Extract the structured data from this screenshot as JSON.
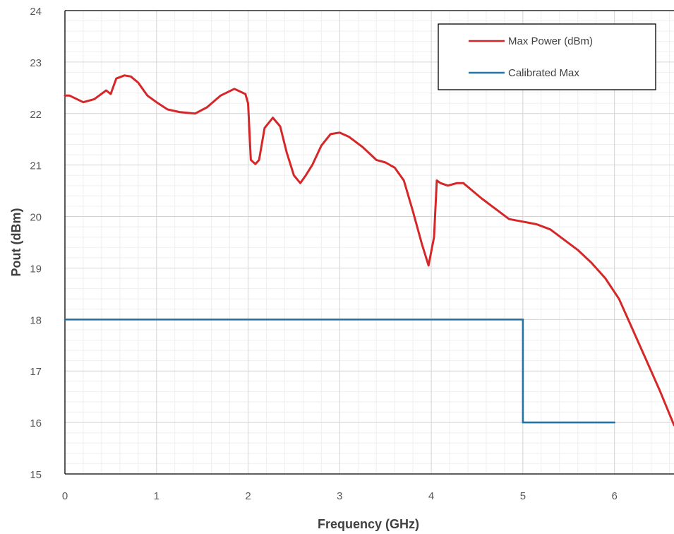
{
  "chart_data": {
    "type": "line",
    "title": "",
    "xlabel": "Frequency (GHz)",
    "ylabel": "Pout (dBm)",
    "xlim": [
      0,
      6.65
    ],
    "ylim": [
      15,
      24
    ],
    "xticks": [
      "0",
      "1",
      "2",
      "3",
      "4",
      "5",
      "6"
    ],
    "yticks": [
      "15",
      "16",
      "17",
      "18",
      "19",
      "20",
      "21",
      "22",
      "23",
      "24"
    ],
    "grid": true,
    "minor_grid": true,
    "legend_position": "top-right",
    "series": [
      {
        "name": "Max Power (dBm)",
        "color": "#d62728",
        "x": [
          0,
          0.05,
          0.2,
          0.32,
          0.45,
          0.5,
          0.56,
          0.65,
          0.72,
          0.8,
          0.9,
          1.0,
          1.12,
          1.25,
          1.42,
          1.55,
          1.7,
          1.85,
          1.97,
          2.0,
          2.03,
          2.08,
          2.12,
          2.18,
          2.27,
          2.35,
          2.42,
          2.5,
          2.57,
          2.63,
          2.7,
          2.8,
          2.9,
          3.0,
          3.1,
          3.25,
          3.4,
          3.5,
          3.6,
          3.7,
          3.8,
          3.9,
          3.97,
          4.03,
          4.06,
          4.1,
          4.18,
          4.28,
          4.35,
          4.45,
          4.55,
          4.7,
          4.85,
          5.0,
          5.15,
          5.3,
          5.45,
          5.6,
          5.75,
          5.9,
          6.05,
          6.2,
          6.35,
          6.5,
          6.65
        ],
        "values": [
          22.35,
          22.35,
          22.22,
          22.28,
          22.45,
          22.38,
          22.68,
          22.74,
          22.72,
          22.6,
          22.35,
          22.22,
          22.08,
          22.03,
          22.0,
          22.12,
          22.35,
          22.48,
          22.38,
          22.2,
          21.1,
          21.02,
          21.1,
          21.72,
          21.92,
          21.75,
          21.25,
          20.8,
          20.65,
          20.8,
          21.0,
          21.38,
          21.6,
          21.63,
          21.55,
          21.35,
          21.1,
          21.05,
          20.95,
          20.7,
          20.1,
          19.45,
          19.05,
          19.6,
          20.7,
          20.65,
          20.6,
          20.65,
          20.65,
          20.5,
          20.35,
          20.15,
          19.95,
          19.9,
          19.85,
          19.75,
          19.55,
          19.35,
          19.1,
          18.8,
          18.4,
          17.8,
          17.2,
          16.6,
          15.95
        ]
      },
      {
        "name": "Calibrated Max",
        "color": "#2274a5",
        "x": [
          0,
          5.0,
          5.0,
          6.0
        ],
        "values": [
          18,
          18,
          16,
          16
        ]
      }
    ]
  }
}
